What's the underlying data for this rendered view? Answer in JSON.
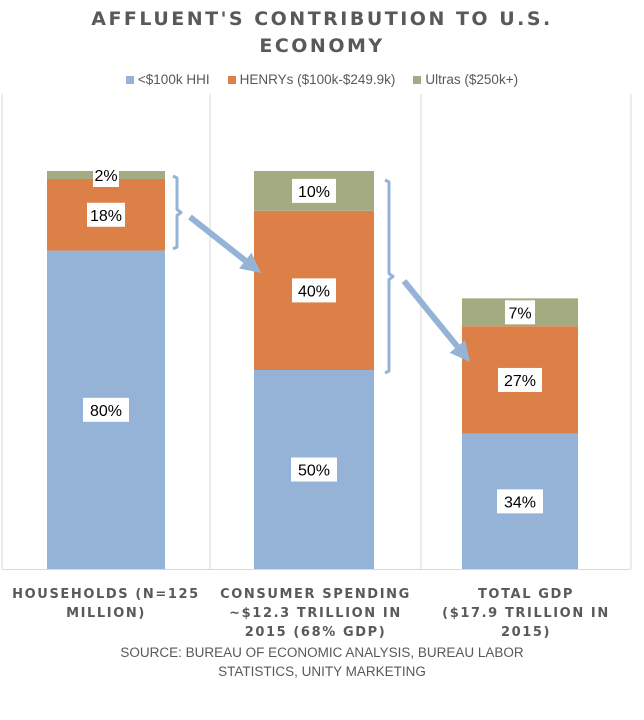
{
  "chart_data": {
    "type": "bar",
    "stacked": true,
    "title": "AFFLUENT'S CONTRIBUTION TO U.S. ECONOMY",
    "categories": [
      "HOUSEHOLDS (N=125 MILLION)",
      "CONSUMER SPENDING ~$12.3 TRILLION IN 2015 (68% GDP)",
      "TOTAL GDP ($17.9 TRILLION IN 2015)"
    ],
    "category_lines": [
      [
        "HOUSEHOLDS (N=125",
        "MILLION)"
      ],
      [
        "CONSUMER SPENDING",
        "~$12.3 TRILLION IN",
        "2015 (68% GDP)"
      ],
      [
        "TOTAL GDP",
        "($17.9 TRILLION IN",
        "2015)"
      ]
    ],
    "series": [
      {
        "name": "<$100k HHI",
        "color": "#95B3D7",
        "values": [
          80,
          50,
          34
        ],
        "labels": [
          "80%",
          "50%",
          "34%"
        ]
      },
      {
        "name": "HENRYs ($100k-$249.9k)",
        "color": "#DD8047",
        "values": [
          18,
          40,
          27
        ],
        "labels": [
          "18%",
          "40%",
          "27%"
        ]
      },
      {
        "name": "Ultras ($250k+)",
        "color": "#A5AB81",
        "values": [
          2,
          10,
          7
        ],
        "labels": [
          "2%",
          "10%",
          "7%"
        ]
      }
    ],
    "ylim": [
      0,
      100
    ],
    "grid": false,
    "legend": "top",
    "annotations": [
      {
        "type": "bracket-arrow",
        "from_category": 0,
        "to_category": 1,
        "note": "HENRYs + Ultras share of households points to their share of consumer spending"
      },
      {
        "type": "bracket-arrow",
        "from_category": 1,
        "to_category": 2,
        "note": "HENRYs + Ultras share of consumer spending points to their share of GDP"
      }
    ],
    "source": "SOURCE:  BUREAU OF ECONOMIC ANALYSIS, BUREAU LABOR STATISTICS, UNITY MARKETING"
  },
  "title_lines": [
    "AFFLUENT'S CONTRIBUTION TO U.S.",
    "ECONOMY"
  ],
  "source_lines": [
    "SOURCE:  BUREAU OF ECONOMIC ANALYSIS, BUREAU LABOR",
    "STATISTICS, UNITY MARKETING"
  ],
  "colors": {
    "annotation": "#95B3D7",
    "gridline": "#D9D9D9",
    "text": "#595959"
  }
}
